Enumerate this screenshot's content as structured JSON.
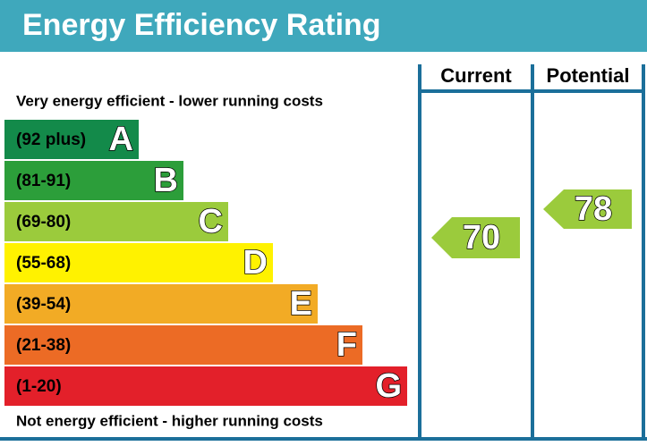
{
  "header": {
    "title": "Energy Efficiency Rating"
  },
  "columns": [
    "Current",
    "Potential"
  ],
  "top_note": "Very energy efficient - lower running costs",
  "bottom_note": "Not energy efficient - higher running costs",
  "bands": [
    {
      "range": "(92 plus)",
      "letter": "A",
      "color": "#138a4a"
    },
    {
      "range": "(81-91)",
      "letter": "B",
      "color": "#2c9e3a"
    },
    {
      "range": "(69-80)",
      "letter": "C",
      "color": "#9bcb3c"
    },
    {
      "range": "(55-68)",
      "letter": "D",
      "color": "#fff200"
    },
    {
      "range": "(39-54)",
      "letter": "E",
      "color": "#f2ab25"
    },
    {
      "range": "(21-38)",
      "letter": "F",
      "color": "#ec6b25"
    },
    {
      "range": "(1-20)",
      "letter": "G",
      "color": "#e3202a"
    }
  ],
  "current": {
    "value": 70
  },
  "potential": {
    "value": 78
  }
}
